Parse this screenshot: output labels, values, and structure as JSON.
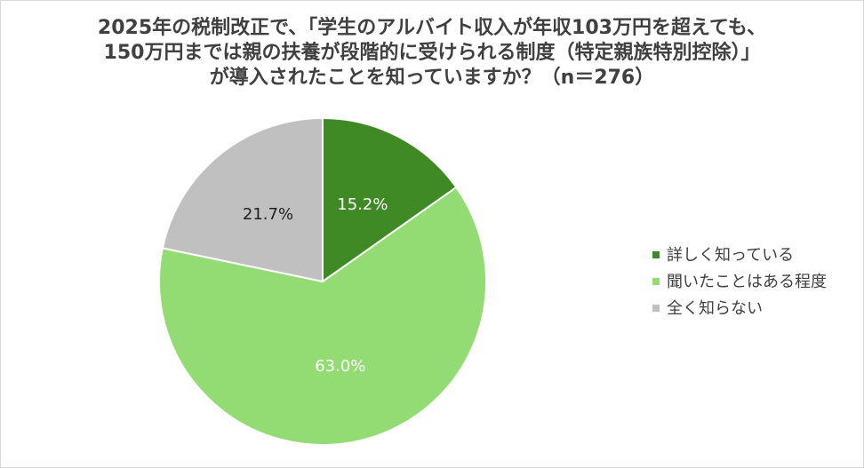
{
  "chart_data": {
    "type": "pie",
    "title_lines": [
      "2025年の税制改正で、「学生のアルバイト収入が年収103万円を超えても、",
      "150万円までは親の扶養が段階的に受けられる制度（特定親族特別控除）」",
      "が導入されたことを知っていますか？（n＝276）"
    ],
    "slices": [
      {
        "label": "詳しく知っている",
        "value": 15.2,
        "display": "15.2%",
        "color": "#3f8a24",
        "label_color": "#ffffff"
      },
      {
        "label": "聞いたことはある程度",
        "value": 63.0,
        "display": "63.0%",
        "color": "#93dc74",
        "label_color": "#ffffff"
      },
      {
        "label": "全く知らない",
        "value": 21.7,
        "display": "21.7%",
        "color": "#c0c0c0",
        "label_color": "#1f1f1f"
      }
    ],
    "legend_placement": "right"
  }
}
